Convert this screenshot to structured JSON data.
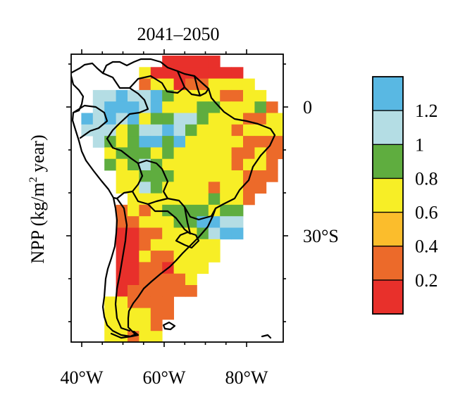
{
  "title": "2041–2050",
  "ylabel_prefix": "NPP (kg/m",
  "ylabel_sup": "2",
  "ylabel_suffix": " year)",
  "x_ticks": [
    {
      "lon": -80,
      "label": "80°W"
    },
    {
      "lon": -60,
      "label": "60°W"
    },
    {
      "lon": -40,
      "label": "40°W"
    }
  ],
  "y_ticks": [
    {
      "lat": 0,
      "label": "0"
    },
    {
      "lat": -30,
      "label": "30°S"
    }
  ],
  "colorbar": {
    "colors": [
      "#e8302b",
      "#ec6a2a",
      "#fbbd2c",
      "#f7ee26",
      "#5fad3f",
      "#b4dde4",
      "#59b8e3"
    ],
    "tick_labels": [
      "0.2",
      "0.4",
      "0.6",
      "0.8",
      "1",
      "1.2"
    ]
  },
  "legend_colors": {
    "land_boundary": "#000000",
    "ocean": "#ffffff"
  }
}
